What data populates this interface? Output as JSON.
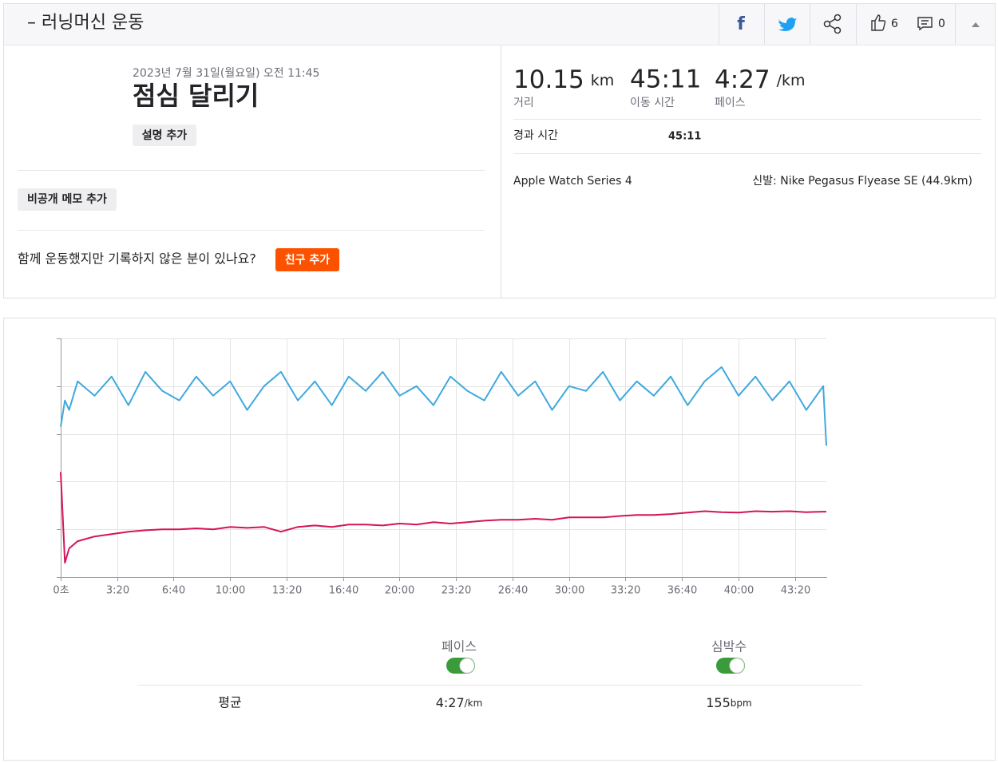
{
  "header": {
    "title": "– 러닝머신 운동",
    "kudos": "6",
    "comments": "0"
  },
  "activity": {
    "date": "2023년 7월 31일(월요일) 오전 11:45",
    "name": "점심 달리기",
    "add_description": "설명 추가",
    "private_note": "비공개 메모 추가",
    "friends_prompt": "함께 운동했지만 기록하지 않은 분이 있나요?",
    "add_friend": "친구 추가"
  },
  "stats": [
    {
      "value": "10.15",
      "unit": "km",
      "label": "거리"
    },
    {
      "value": "45:11",
      "label": "이동 시간"
    },
    {
      "value": "4:27",
      "unit": "/km",
      "label": "페이스"
    }
  ],
  "elapsed": {
    "label": "경과 시간",
    "value": "45:11"
  },
  "device": "Apple Watch Series 4",
  "shoes": "신발: Nike Pegasus Flyease SE (44.9km)",
  "chart_data": {
    "type": "line",
    "x": [
      0,
      15,
      30,
      60,
      120,
      180,
      240,
      300,
      360,
      420,
      480,
      540,
      600,
      660,
      720,
      780,
      840,
      900,
      960,
      1020,
      1080,
      1140,
      1200,
      1260,
      1320,
      1380,
      1440,
      1500,
      1560,
      1620,
      1680,
      1740,
      1800,
      1860,
      1920,
      1980,
      2040,
      2100,
      2160,
      2220,
      2280,
      2340,
      2400,
      2460,
      2520,
      2580,
      2640,
      2700,
      2711
    ],
    "xlim": [
      0,
      2711
    ],
    "xticks": [
      {
        "value": 0,
        "label": "0초"
      },
      {
        "value": 200,
        "label": "3:20"
      },
      {
        "value": 400,
        "label": "6:40"
      },
      {
        "value": 600,
        "label": "10:00"
      },
      {
        "value": 800,
        "label": "13:20"
      },
      {
        "value": 1000,
        "label": "16:40"
      },
      {
        "value": 1200,
        "label": "20:00"
      },
      {
        "value": 1400,
        "label": "23:20"
      },
      {
        "value": 1600,
        "label": "26:40"
      },
      {
        "value": 1800,
        "label": "30:00"
      },
      {
        "value": 2000,
        "label": "33:20"
      },
      {
        "value": 2200,
        "label": "36:40"
      },
      {
        "value": 2400,
        "label": "40:00"
      },
      {
        "value": 2600,
        "label": "43:20"
      }
    ],
    "ylim": [
      0,
      5
    ],
    "yticks": [
      0,
      1,
      2,
      3,
      4,
      5
    ],
    "grid": true,
    "series": [
      {
        "name": "페이스",
        "color": "#3fa9dd",
        "values": [
          3.15,
          3.7,
          3.5,
          4.1,
          3.8,
          4.2,
          3.6,
          4.3,
          3.9,
          3.7,
          4.2,
          3.8,
          4.1,
          3.5,
          4.0,
          4.3,
          3.7,
          4.1,
          3.6,
          4.2,
          3.9,
          4.3,
          3.8,
          4.0,
          3.6,
          4.2,
          3.9,
          3.7,
          4.3,
          3.8,
          4.1,
          3.5,
          4.0,
          3.9,
          4.3,
          3.7,
          4.1,
          3.8,
          4.2,
          3.6,
          4.1,
          4.4,
          3.8,
          4.2,
          3.7,
          4.1,
          3.5,
          4.0,
          2.75
        ]
      },
      {
        "name": "심박수",
        "color": "#d4145a",
        "values": [
          2.2,
          0.3,
          0.6,
          0.75,
          0.85,
          0.9,
          0.95,
          0.98,
          1.0,
          1.0,
          1.02,
          1.0,
          1.05,
          1.03,
          1.05,
          0.95,
          1.05,
          1.08,
          1.05,
          1.1,
          1.1,
          1.08,
          1.12,
          1.1,
          1.15,
          1.12,
          1.15,
          1.18,
          1.2,
          1.2,
          1.22,
          1.2,
          1.25,
          1.25,
          1.25,
          1.28,
          1.3,
          1.3,
          1.32,
          1.35,
          1.38,
          1.36,
          1.35,
          1.38,
          1.37,
          1.38,
          1.36,
          1.37,
          1.37
        ]
      }
    ]
  },
  "summary": {
    "label": "평균",
    "pace": "4:27",
    "pace_unit": "/km",
    "heart_rate": "155",
    "heart_rate_unit": "bpm"
  }
}
